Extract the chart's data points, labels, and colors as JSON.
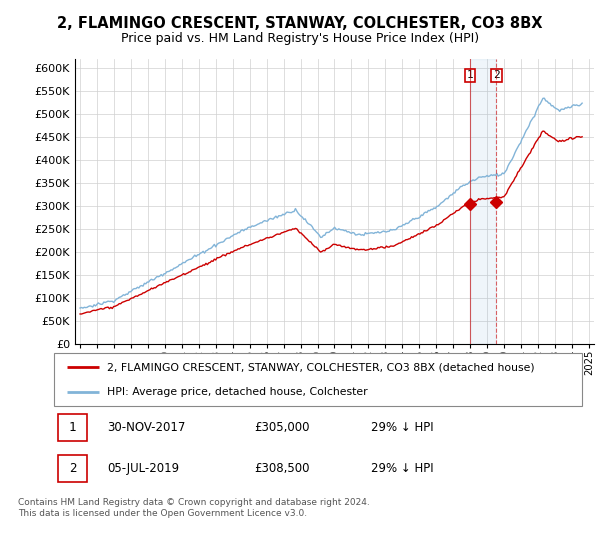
{
  "title": "2, FLAMINGO CRESCENT, STANWAY, COLCHESTER, CO3 8BX",
  "subtitle": "Price paid vs. HM Land Registry's House Price Index (HPI)",
  "legend_line1": "2, FLAMINGO CRESCENT, STANWAY, COLCHESTER, CO3 8BX (detached house)",
  "legend_line2": "HPI: Average price, detached house, Colchester",
  "footer": "Contains HM Land Registry data © Crown copyright and database right 2024.\nThis data is licensed under the Open Government Licence v3.0.",
  "sale1_date": "30-NOV-2017",
  "sale1_price": "£305,000",
  "sale1_hpi": "29% ↓ HPI",
  "sale2_date": "05-JUL-2019",
  "sale2_price": "£308,500",
  "sale2_hpi": "29% ↓ HPI",
  "hpi_color": "#82b4d8",
  "price_color": "#cc0000",
  "marker_color": "#cc0000",
  "ylim_min": 0,
  "ylim_max": 620000,
  "yticks": [
    0,
    50000,
    100000,
    150000,
    200000,
    250000,
    300000,
    350000,
    400000,
    450000,
    500000,
    550000,
    600000
  ],
  "sale1_x": 2018.0,
  "sale1_y": 305000,
  "sale2_x": 2019.55,
  "sale2_y": 308500,
  "xmin": 1995,
  "xmax": 2025
}
